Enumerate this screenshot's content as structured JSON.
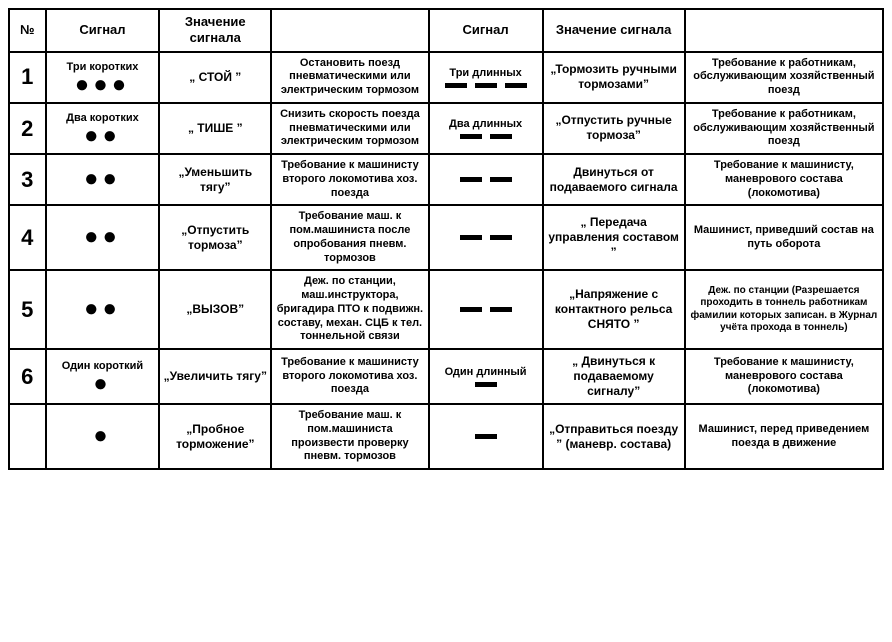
{
  "headers": {
    "num": "№",
    "signal": "Сигнал",
    "meaning": "Значение сигнала",
    "desc_blank": "",
    "signal2": "Сигнал",
    "meaning2": "Значение сигнала",
    "desc_blank2": ""
  },
  "dot_color": "#000000",
  "dash_color": "#000000",
  "dash": {
    "w": 22,
    "h": 5,
    "gap": 8
  },
  "rows": [
    {
      "num": "1",
      "left": {
        "label": "Три коротких",
        "dots": 3,
        "meaning": "„ СТОЙ ”",
        "desc": "Остановить поезд пневматическими или электрическим тормозом"
      },
      "right": {
        "label": "Три длинных",
        "dashes": 3,
        "meaning": "„Тормозить ручными тормозами”",
        "desc": "Требование к работникам, обслуживающим хозяйственный поезд"
      }
    },
    {
      "num": "2",
      "left": {
        "label": "Два коротких",
        "dots": 2,
        "meaning": "„ ТИШЕ ”",
        "desc": "Снизить скорость поезда пневматическими или электрическим тормозом"
      },
      "right": {
        "label": "Два длинных",
        "dashes": 2,
        "meaning": "„Отпустить ручные тормоза”",
        "desc": "Требование к работникам, обслуживающим хозяйственный поезд"
      }
    },
    {
      "num": "3",
      "left": {
        "label": "",
        "dots": 2,
        "meaning": "„Уменьшить тягу”",
        "desc": "Требование к машинисту второго локомотива хоз. поезда"
      },
      "right": {
        "label": "",
        "dashes": 2,
        "meaning": "Двинуться от подаваемого сигнала",
        "desc": "Требование к машинисту, маневрового состава (локомотива)"
      }
    },
    {
      "num": "4",
      "left": {
        "label": "",
        "dots": 2,
        "meaning": "„Отпустить тормоза”",
        "desc": "Требование маш. к пом.машиниста после опробования пневм. тормозов"
      },
      "right": {
        "label": "",
        "dashes": 2,
        "meaning": "„ Передача управления составом ”",
        "desc": "Машинист, приведший состав на путь оборота"
      }
    },
    {
      "num": "5",
      "left": {
        "label": "",
        "dots": 2,
        "meaning": "„ВЫЗОВ”",
        "desc": "Деж. по станции, маш.инструктора, бригадира ПТО к подвижн. составу, механ. СЦБ к тел. тоннельной связи"
      },
      "right": {
        "label": "",
        "dashes": 2,
        "meaning": "„Напряжение с контактного рельса СНЯТО ”",
        "desc": "Деж. по станции (Разрешается проходить в тоннель работникам фамилии которых записан. в Журнал учёта прохода в тоннель)"
      }
    },
    {
      "num": "6",
      "left": {
        "label": "Один короткий",
        "dots": 1,
        "meaning": "„Увеличить тягу”",
        "desc": "Требование к машинисту второго локомотива хоз. поезда"
      },
      "right": {
        "label": "Один длинный",
        "dashes": 1,
        "meaning": "„ Двинуться к подаваемому сигналу”",
        "desc": "Требование к машинисту, маневрового состава (локомотива)"
      }
    },
    {
      "num": "",
      "left": {
        "label": "",
        "dots": 1,
        "meaning": "„Пробное торможение”",
        "desc": "Требование маш. к пом.машиниста произвести проверку пневм. тормозов"
      },
      "right": {
        "label": "",
        "dashes": 1,
        "meaning": "„Отправиться поезду ” (маневр. состава)",
        "desc": "Машинист, перед приведением поезда в движение"
      }
    }
  ]
}
